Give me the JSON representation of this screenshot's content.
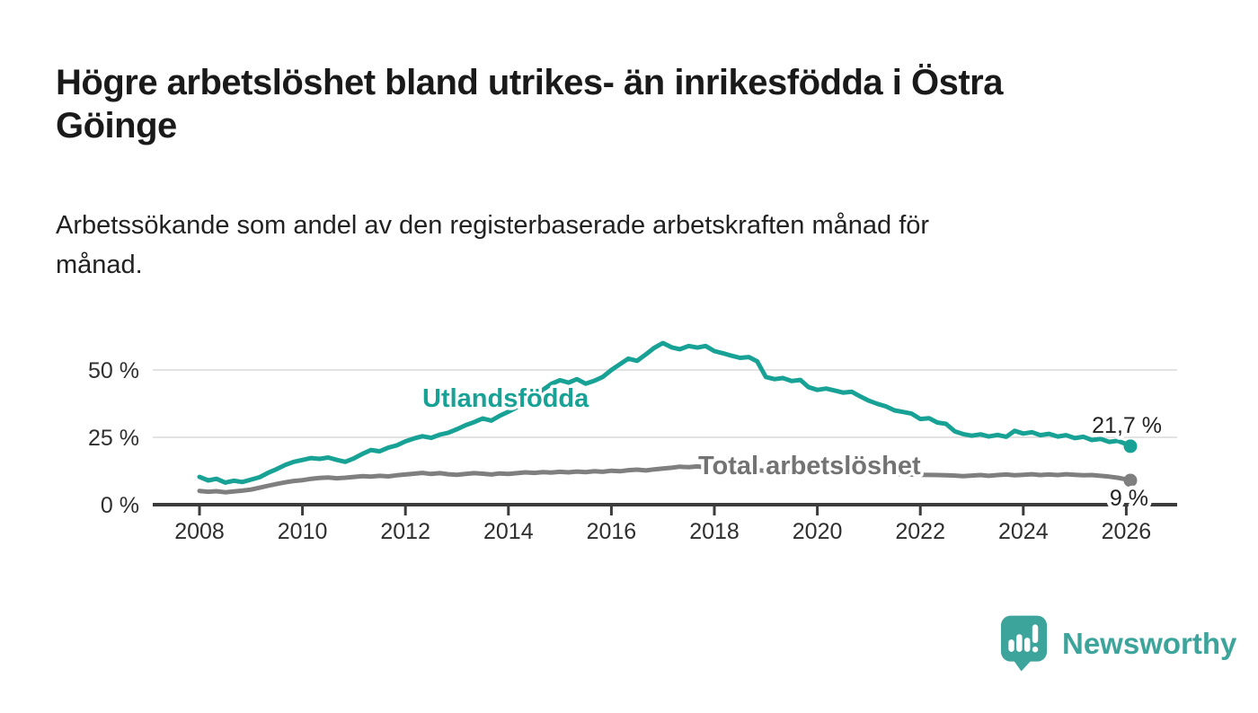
{
  "header": {
    "title": "Högre arbetslöshet bland utrikes- än inrikesfödda i Östra\nGöinge",
    "subtitle": "Arbetssökande som andel av den registerbaserade arbetskraften månad för\nmånad."
  },
  "footer": {
    "brand": "Newsworthy"
  },
  "colors": {
    "accent_teal": "#18a296",
    "series_gray": "#7f7f7f",
    "label_gray": "#737373",
    "axis": "#3c3c3c",
    "grid": "#d9d9d9",
    "text": "#1a1a1a",
    "logo_teal": "#3da49c"
  },
  "chart_data": {
    "type": "line",
    "title": "",
    "xlabel": "",
    "ylabel": "",
    "grid": "horizontal",
    "xlim": [
      2007.1,
      2027
    ],
    "ylim": [
      0,
      63
    ],
    "x_ticks": [
      "2008",
      "2010",
      "2012",
      "2014",
      "2016",
      "2018",
      "2020",
      "2022",
      "2024",
      "2026"
    ],
    "x_tick_values": [
      2008,
      2010,
      2012,
      2014,
      2016,
      2018,
      2020,
      2022,
      2024,
      2026
    ],
    "y_ticks": [
      {
        "value": 0,
        "label": "0 %"
      },
      {
        "value": 25,
        "label": "25 %"
      },
      {
        "value": 50,
        "label": "50 %"
      }
    ],
    "series": [
      {
        "name": "Utlandsfödda",
        "color": "#18a296",
        "end_label": "21,7 %",
        "end_value": 21.7,
        "points": [
          [
            2008.0,
            10.3
          ],
          [
            2008.17,
            9.0
          ],
          [
            2008.33,
            9.6
          ],
          [
            2008.5,
            8.2
          ],
          [
            2008.67,
            8.9
          ],
          [
            2008.83,
            8.4
          ],
          [
            2009.0,
            9.3
          ],
          [
            2009.17,
            10.2
          ],
          [
            2009.33,
            11.8
          ],
          [
            2009.5,
            13.2
          ],
          [
            2009.67,
            14.8
          ],
          [
            2009.83,
            15.9
          ],
          [
            2010.0,
            16.6
          ],
          [
            2010.17,
            17.3
          ],
          [
            2010.33,
            17.0
          ],
          [
            2010.5,
            17.5
          ],
          [
            2010.67,
            16.6
          ],
          [
            2010.83,
            15.9
          ],
          [
            2011.0,
            17.2
          ],
          [
            2011.17,
            18.9
          ],
          [
            2011.33,
            20.3
          ],
          [
            2011.5,
            19.8
          ],
          [
            2011.67,
            21.2
          ],
          [
            2011.83,
            22.0
          ],
          [
            2012.0,
            23.5
          ],
          [
            2012.17,
            24.6
          ],
          [
            2012.33,
            25.4
          ],
          [
            2012.5,
            24.8
          ],
          [
            2012.67,
            26.0
          ],
          [
            2012.83,
            26.7
          ],
          [
            2013.0,
            28.0
          ],
          [
            2013.17,
            29.5
          ],
          [
            2013.33,
            30.6
          ],
          [
            2013.5,
            32.0
          ],
          [
            2013.67,
            31.2
          ],
          [
            2013.83,
            33.0
          ],
          [
            2014.0,
            34.5
          ],
          [
            2014.17,
            36.2
          ],
          [
            2014.33,
            38.0
          ],
          [
            2014.5,
            40.5
          ],
          [
            2014.67,
            42.6
          ],
          [
            2014.83,
            44.8
          ],
          [
            2015.0,
            46.2
          ],
          [
            2015.17,
            45.3
          ],
          [
            2015.33,
            46.6
          ],
          [
            2015.5,
            44.9
          ],
          [
            2015.67,
            46.0
          ],
          [
            2015.83,
            47.4
          ],
          [
            2016.0,
            50.0
          ],
          [
            2016.17,
            52.2
          ],
          [
            2016.33,
            54.2
          ],
          [
            2016.5,
            53.4
          ],
          [
            2016.67,
            55.8
          ],
          [
            2016.83,
            58.2
          ],
          [
            2017.0,
            60.0
          ],
          [
            2017.17,
            58.4
          ],
          [
            2017.33,
            57.7
          ],
          [
            2017.5,
            58.9
          ],
          [
            2017.67,
            58.3
          ],
          [
            2017.83,
            58.9
          ],
          [
            2018.0,
            57.0
          ],
          [
            2018.17,
            56.2
          ],
          [
            2018.33,
            55.3
          ],
          [
            2018.5,
            54.5
          ],
          [
            2018.67,
            54.8
          ],
          [
            2018.83,
            53.2
          ],
          [
            2019.0,
            47.4
          ],
          [
            2019.17,
            46.6
          ],
          [
            2019.33,
            47.0
          ],
          [
            2019.5,
            45.9
          ],
          [
            2019.67,
            46.3
          ],
          [
            2019.83,
            43.6
          ],
          [
            2020.0,
            42.6
          ],
          [
            2020.17,
            43.1
          ],
          [
            2020.33,
            42.4
          ],
          [
            2020.5,
            41.6
          ],
          [
            2020.67,
            41.9
          ],
          [
            2020.83,
            40.2
          ],
          [
            2021.0,
            38.6
          ],
          [
            2021.17,
            37.4
          ],
          [
            2021.33,
            36.5
          ],
          [
            2021.5,
            35.0
          ],
          [
            2021.67,
            34.4
          ],
          [
            2021.83,
            33.8
          ],
          [
            2022.0,
            31.8
          ],
          [
            2022.17,
            32.1
          ],
          [
            2022.33,
            30.5
          ],
          [
            2022.5,
            30.0
          ],
          [
            2022.67,
            27.2
          ],
          [
            2022.83,
            26.2
          ],
          [
            2023.0,
            25.6
          ],
          [
            2023.17,
            26.1
          ],
          [
            2023.33,
            25.3
          ],
          [
            2023.5,
            25.9
          ],
          [
            2023.67,
            25.2
          ],
          [
            2023.83,
            27.4
          ],
          [
            2024.0,
            26.4
          ],
          [
            2024.17,
            26.9
          ],
          [
            2024.33,
            25.8
          ],
          [
            2024.5,
            26.3
          ],
          [
            2024.67,
            25.3
          ],
          [
            2024.83,
            25.8
          ],
          [
            2025.0,
            24.7
          ],
          [
            2025.17,
            25.2
          ],
          [
            2025.33,
            24.0
          ],
          [
            2025.5,
            24.4
          ],
          [
            2025.67,
            23.3
          ],
          [
            2025.83,
            23.7
          ],
          [
            2026.0,
            22.5
          ],
          [
            2026.08,
            21.7
          ]
        ]
      },
      {
        "name": "Total arbetslöshet",
        "color": "#7f7f7f",
        "label_color": "#737373",
        "end_label": "9 %",
        "end_value": 9,
        "points": [
          [
            2008.0,
            5.1
          ],
          [
            2008.17,
            4.8
          ],
          [
            2008.33,
            5.0
          ],
          [
            2008.5,
            4.6
          ],
          [
            2008.67,
            4.9
          ],
          [
            2008.83,
            5.2
          ],
          [
            2009.0,
            5.6
          ],
          [
            2009.17,
            6.3
          ],
          [
            2009.33,
            7.0
          ],
          [
            2009.5,
            7.7
          ],
          [
            2009.67,
            8.3
          ],
          [
            2009.83,
            8.8
          ],
          [
            2010.0,
            9.1
          ],
          [
            2010.17,
            9.6
          ],
          [
            2010.33,
            9.9
          ],
          [
            2010.5,
            10.1
          ],
          [
            2010.67,
            9.8
          ],
          [
            2010.83,
            10.0
          ],
          [
            2011.0,
            10.3
          ],
          [
            2011.17,
            10.6
          ],
          [
            2011.33,
            10.4
          ],
          [
            2011.5,
            10.7
          ],
          [
            2011.67,
            10.5
          ],
          [
            2011.83,
            10.9
          ],
          [
            2012.0,
            11.2
          ],
          [
            2012.17,
            11.5
          ],
          [
            2012.33,
            11.8
          ],
          [
            2012.5,
            11.4
          ],
          [
            2012.67,
            11.7
          ],
          [
            2012.83,
            11.3
          ],
          [
            2013.0,
            11.1
          ],
          [
            2013.17,
            11.4
          ],
          [
            2013.33,
            11.7
          ],
          [
            2013.5,
            11.5
          ],
          [
            2013.67,
            11.2
          ],
          [
            2013.83,
            11.6
          ],
          [
            2014.0,
            11.4
          ],
          [
            2014.17,
            11.7
          ],
          [
            2014.33,
            12.0
          ],
          [
            2014.5,
            11.8
          ],
          [
            2014.67,
            12.1
          ],
          [
            2014.83,
            11.9
          ],
          [
            2015.0,
            12.2
          ],
          [
            2015.17,
            12.0
          ],
          [
            2015.33,
            12.3
          ],
          [
            2015.5,
            12.1
          ],
          [
            2015.67,
            12.4
          ],
          [
            2015.83,
            12.2
          ],
          [
            2016.0,
            12.6
          ],
          [
            2016.17,
            12.4
          ],
          [
            2016.33,
            12.8
          ],
          [
            2016.5,
            13.0
          ],
          [
            2016.67,
            12.7
          ],
          [
            2016.83,
            13.1
          ],
          [
            2017.0,
            13.4
          ],
          [
            2017.17,
            13.7
          ],
          [
            2017.33,
            14.1
          ],
          [
            2017.5,
            13.9
          ],
          [
            2017.67,
            14.2
          ],
          [
            2017.83,
            13.8
          ],
          [
            2018.0,
            14.0
          ],
          [
            2018.33,
            13.4
          ],
          [
            2018.67,
            13.0
          ],
          [
            2019.0,
            12.6
          ],
          [
            2019.33,
            12.3
          ],
          [
            2019.67,
            12.0
          ],
          [
            2020.0,
            12.7
          ],
          [
            2020.33,
            12.9
          ],
          [
            2020.67,
            12.3
          ],
          [
            2021.0,
            11.8
          ],
          [
            2021.33,
            11.5
          ],
          [
            2021.67,
            11.3
          ],
          [
            2022.0,
            11.1
          ],
          [
            2022.33,
            11.0
          ],
          [
            2022.5,
            10.9
          ],
          [
            2022.67,
            10.8
          ],
          [
            2022.83,
            10.6
          ],
          [
            2023.0,
            10.8
          ],
          [
            2023.17,
            11.0
          ],
          [
            2023.33,
            10.7
          ],
          [
            2023.5,
            11.0
          ],
          [
            2023.67,
            11.2
          ],
          [
            2023.83,
            10.9
          ],
          [
            2024.0,
            11.1
          ],
          [
            2024.17,
            11.3
          ],
          [
            2024.33,
            11.0
          ],
          [
            2024.5,
            11.2
          ],
          [
            2024.67,
            11.0
          ],
          [
            2024.83,
            11.3
          ],
          [
            2025.0,
            11.1
          ],
          [
            2025.17,
            10.9
          ],
          [
            2025.33,
            11.0
          ],
          [
            2025.5,
            10.7
          ],
          [
            2025.67,
            10.4
          ],
          [
            2025.83,
            10.0
          ],
          [
            2026.0,
            9.4
          ],
          [
            2026.08,
            9.0
          ]
        ]
      }
    ]
  }
}
